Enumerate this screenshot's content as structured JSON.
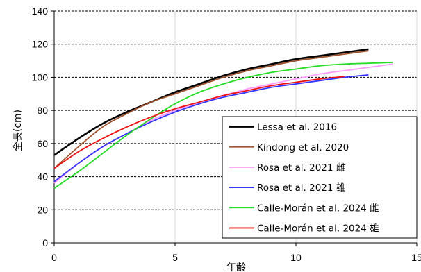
{
  "chart_data": {
    "type": "line",
    "xlabel": "年齢",
    "ylabel": "全長(cm)",
    "xlim": [
      0,
      15
    ],
    "ylim": [
      0,
      140
    ],
    "xticks": [
      0,
      5,
      10,
      15
    ],
    "yticks": [
      0,
      20,
      40,
      60,
      80,
      100,
      120,
      140
    ],
    "grid": {
      "y": "dashed",
      "x": "solid-light"
    },
    "legend_position": "bottom-right",
    "series": [
      {
        "name": "Lessa et al. 2016",
        "color": "#000000",
        "x": [
          0,
          1,
          2,
          3,
          4,
          5,
          6,
          7,
          8,
          9,
          10,
          11,
          12,
          13
        ],
        "y": [
          53,
          63,
          72,
          79,
          85,
          91,
          96,
          101,
          105,
          108,
          111,
          113,
          115,
          117
        ]
      },
      {
        "name": "Kindong et al. 2020",
        "color": "#a0522d",
        "x": [
          0,
          1,
          2,
          3,
          4,
          5,
          6,
          7,
          8,
          9,
          10,
          11,
          12,
          13
        ],
        "y": [
          45,
          58,
          70,
          78,
          85,
          90,
          95,
          100,
          104,
          107,
          110,
          112,
          114,
          116
        ]
      },
      {
        "name": "Rosa et al. 2021 雌",
        "color": "#ff99ff",
        "x": [
          0,
          1,
          2,
          3,
          4,
          5,
          6,
          7,
          8,
          9,
          10,
          11,
          12,
          13,
          14
        ],
        "y": [
          36,
          48,
          58,
          66,
          74,
          80,
          85,
          89,
          93,
          96,
          99,
          102,
          104,
          106,
          108
        ]
      },
      {
        "name": "Rosa et al. 2021 雄",
        "color": "#3333ff",
        "x": [
          0,
          1,
          2,
          3,
          4,
          5,
          6,
          7,
          8,
          9,
          10,
          11,
          12,
          13
        ],
        "y": [
          37,
          48,
          58,
          66,
          73,
          79,
          84,
          88,
          91,
          94,
          96,
          98,
          100,
          101.5
        ]
      },
      {
        "name": "Calle-Morán et al. 2024 雌",
        "color": "#22dd22",
        "x": [
          0,
          1,
          2,
          3,
          4,
          5,
          6,
          7,
          8,
          9,
          10,
          11,
          12,
          13,
          14
        ],
        "y": [
          33,
          43,
          54,
          65,
          75,
          84,
          91,
          96,
          100,
          103,
          105,
          107,
          108,
          108.5,
          109
        ]
      },
      {
        "name": "Calle-Morán et al. 2024 雄",
        "color": "#ee1111",
        "x": [
          0,
          1,
          2,
          3,
          4,
          5,
          6,
          7,
          8,
          9,
          10,
          11,
          12
        ],
        "y": [
          45,
          55,
          63,
          70,
          76,
          81,
          85,
          89,
          92,
          95,
          97,
          99,
          100.5
        ]
      }
    ]
  }
}
